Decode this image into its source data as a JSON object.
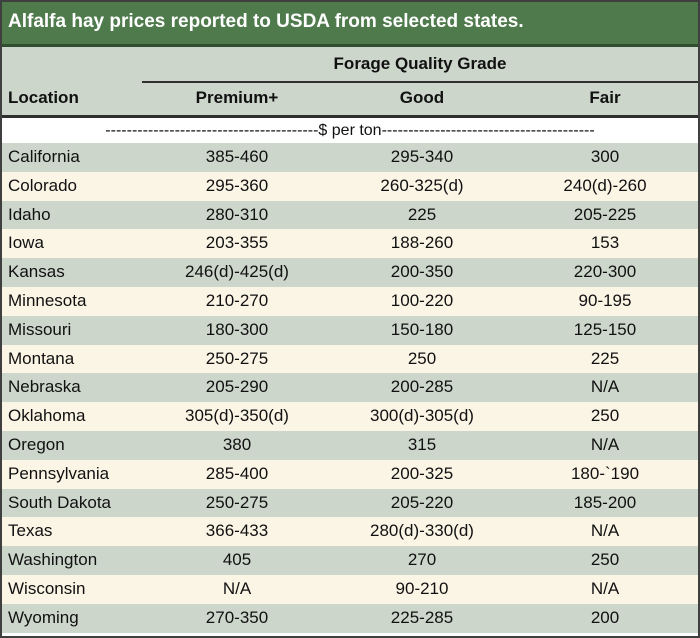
{
  "title": "Alfalfa hay prices reported to USDA from selected states.",
  "header": {
    "group_label": "Forage Quality Grade",
    "location": "Location",
    "premium": "Premium+",
    "good": "Good",
    "fair": "Fair"
  },
  "units_row": "----------------------------------------$ per ton----------------------------------------",
  "rows": [
    {
      "location": "California",
      "premium": "385-460",
      "good": "295-340",
      "fair": "300"
    },
    {
      "location": "Colorado",
      "premium": "295-360",
      "good": "260-325(d)",
      "fair": "240(d)-260"
    },
    {
      "location": "Idaho",
      "premium": "280-310",
      "good": "225",
      "fair": "205-225"
    },
    {
      "location": "Iowa",
      "premium": "203-355",
      "good": "188-260",
      "fair": "153"
    },
    {
      "location": "Kansas",
      "premium": "246(d)-425(d)",
      "good": "200-350",
      "fair": "220-300"
    },
    {
      "location": "Minnesota",
      "premium": "210-270",
      "good": "100-220",
      "fair": "90-195"
    },
    {
      "location": "Missouri",
      "premium": "180-300",
      "good": "150-180",
      "fair": "125-150"
    },
    {
      "location": "Montana",
      "premium": "250-275",
      "good": "250",
      "fair": "225"
    },
    {
      "location": "Nebraska",
      "premium": "205-290",
      "good": "200-285",
      "fair": "N/A"
    },
    {
      "location": "Oklahoma",
      "premium": "305(d)-350(d)",
      "good": "300(d)-305(d)",
      "fair": "250"
    },
    {
      "location": "Oregon",
      "premium": "380",
      "good": "315",
      "fair": "N/A"
    },
    {
      "location": "Pennsylvania",
      "premium": "285-400",
      "good": "200-325",
      "fair": "180-`190"
    },
    {
      "location": "South Dakota",
      "premium": "250-275",
      "good": "205-220",
      "fair": "185-200"
    },
    {
      "location": "Texas",
      "premium": "366-433",
      "good": "280(d)-330(d)",
      "fair": "N/A"
    },
    {
      "location": "Washington",
      "premium": "405",
      "good": "270",
      "fair": "250"
    },
    {
      "location": "Wisconsin",
      "premium": "N/A",
      "good": "90-210",
      "fair": "N/A"
    },
    {
      "location": "Wyoming",
      "premium": "270-350",
      "good": "225-285",
      "fair": "200"
    }
  ]
}
